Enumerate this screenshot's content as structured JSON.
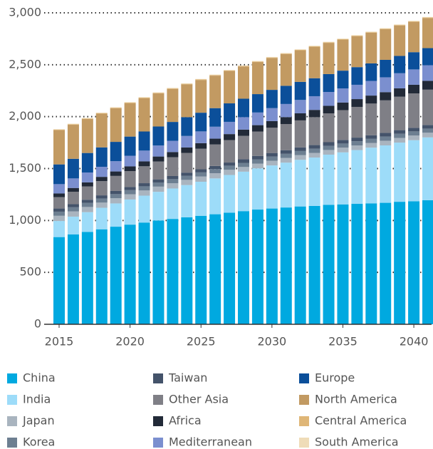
{
  "chart_data": {
    "type": "stacked_bar",
    "x": [
      2015,
      2016,
      2017,
      2018,
      2019,
      2020,
      2021,
      2022,
      2023,
      2024,
      2025,
      2026,
      2027,
      2028,
      2029,
      2030,
      2031,
      2032,
      2033,
      2034,
      2035,
      2036,
      2037,
      2038,
      2039,
      2040,
      2041
    ],
    "xticks": [
      2015,
      2020,
      2025,
      2030,
      2035,
      2040
    ],
    "ylim": [
      0,
      3000
    ],
    "yticks": [
      0,
      500,
      {
        "value": 1000,
        "label": "1,000"
      },
      {
        "value": 1500,
        "label": "1,500"
      },
      {
        "value": 2000,
        "label": "2,000"
      },
      {
        "value": 2500,
        "label": "2,500"
      },
      {
        "value": 3000,
        "label": "3,000"
      }
    ],
    "grid": true,
    "series": [
      {
        "name": "China",
        "color": "#00a9e0",
        "values": [
          840,
          865,
          890,
          915,
          940,
          960,
          980,
          1000,
          1015,
          1030,
          1045,
          1060,
          1075,
          1090,
          1105,
          1115,
          1125,
          1135,
          1140,
          1150,
          1155,
          1160,
          1165,
          1170,
          1180,
          1185,
          1195
        ]
      },
      {
        "name": "India",
        "color": "#9ddcf9",
        "values": [
          155,
          172,
          190,
          207,
          224,
          242,
          259,
          276,
          293,
          311,
          328,
          345,
          363,
          380,
          397,
          415,
          432,
          449,
          466,
          484,
          501,
          518,
          536,
          553,
          570,
          588,
          605
        ]
      },
      {
        "name": "Japan",
        "color": "#a9b4bf",
        "values": [
          50,
          50,
          50,
          50,
          50,
          50,
          50,
          50,
          50,
          50,
          50,
          50,
          50,
          45,
          45,
          45,
          45,
          45,
          45,
          45,
          45,
          45,
          45,
          45,
          45,
          45,
          45
        ]
      },
      {
        "name": "Korea",
        "color": "#6d7f91",
        "values": [
          40,
          40,
          40,
          40,
          40,
          40,
          40,
          40,
          40,
          40,
          40,
          40,
          40,
          40,
          40,
          40,
          40,
          40,
          40,
          40,
          40,
          40,
          40,
          40,
          40,
          40,
          40
        ]
      },
      {
        "name": "Taiwan",
        "color": "#44536a",
        "values": [
          30,
          30,
          30,
          30,
          30,
          30,
          30,
          30,
          30,
          30,
          30,
          30,
          30,
          35,
          35,
          35,
          35,
          35,
          35,
          35,
          35,
          35,
          35,
          35,
          35,
          35,
          35
        ]
      },
      {
        "name": "Other Asia",
        "color": "#7f7f86",
        "values": [
          110,
          119,
          128,
          137,
          145,
          154,
          163,
          172,
          181,
          190,
          198,
          207,
          216,
          225,
          234,
          243,
          252,
          260,
          269,
          278,
          287,
          296,
          305,
          314,
          322,
          331,
          340
        ]
      },
      {
        "name": "Africa",
        "color": "#222a38",
        "values": [
          35,
          37,
          39,
          41,
          43,
          45,
          47,
          48,
          50,
          52,
          54,
          56,
          58,
          60,
          62,
          64,
          66,
          68,
          70,
          72,
          73,
          75,
          77,
          79,
          81,
          83,
          85
        ]
      },
      {
        "name": "Mediterranean",
        "color": "#7b8fcf",
        "values": [
          90,
          92,
          95,
          97,
          99,
          102,
          104,
          106,
          108,
          111,
          113,
          115,
          118,
          120,
          122,
          125,
          127,
          129,
          132,
          134,
          136,
          138,
          141,
          143,
          145,
          148,
          150
        ]
      },
      {
        "name": "Europe",
        "color": "#0b4f9a",
        "values": [
          190,
          189,
          188,
          187,
          186,
          185,
          184,
          183,
          182,
          181,
          180,
          179,
          178,
          178,
          177,
          176,
          175,
          174,
          173,
          172,
          171,
          170,
          169,
          168,
          167,
          166,
          165
        ]
      },
      {
        "name": "North America",
        "color": "#c29a62",
        "values": [
          330,
          328,
          327,
          325,
          324,
          322,
          321,
          319,
          318,
          316,
          315,
          313,
          312,
          310,
          309,
          307,
          306,
          304,
          303,
          301,
          299,
          298,
          296,
          295,
          293,
          292,
          290
        ]
      },
      {
        "name": "Central America",
        "color": "#dfb677",
        "values": [
          5,
          5,
          5,
          5,
          5,
          5,
          5,
          5,
          5,
          5,
          5,
          5,
          5,
          5,
          5,
          5,
          5,
          5,
          5,
          5,
          5,
          5,
          5,
          5,
          5,
          5,
          5
        ]
      },
      {
        "name": "South America",
        "color": "#efdcb8",
        "values": [
          5,
          5,
          5,
          5,
          5,
          5,
          5,
          5,
          5,
          5,
          5,
          5,
          5,
          5,
          5,
          5,
          5,
          5,
          5,
          5,
          5,
          5,
          5,
          5,
          5,
          5,
          5
        ]
      }
    ]
  }
}
